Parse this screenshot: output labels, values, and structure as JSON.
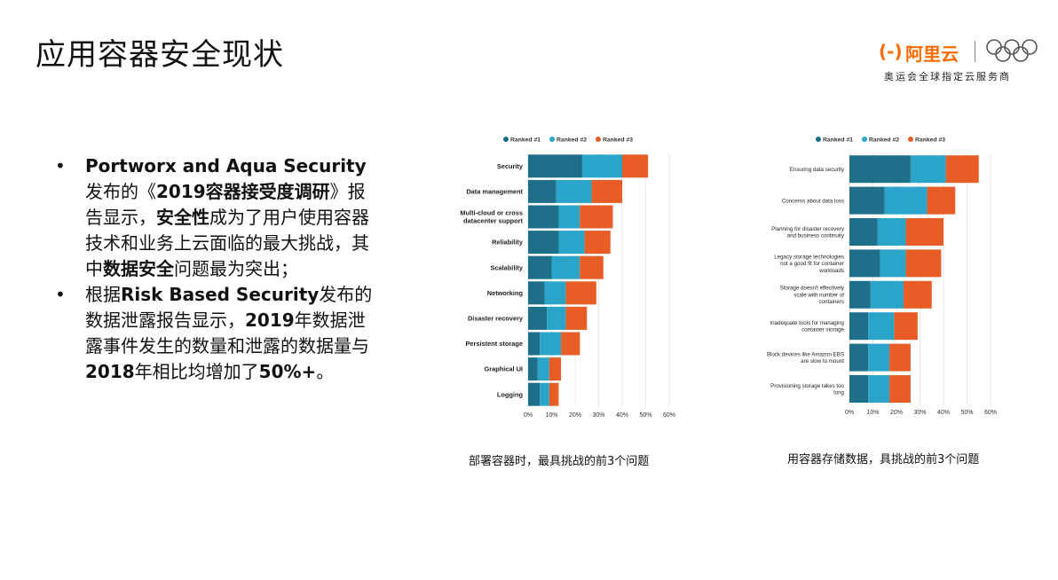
{
  "page": {
    "title": "应用容器安全现状"
  },
  "brand": {
    "mark": "(-)",
    "name": "阿里云",
    "tagline": "奥运会全球指定云服务商"
  },
  "bullets": [
    {
      "parts": [
        {
          "text": "Portworx and Aqua Security",
          "bold": true
        },
        {
          "text": "发布的《",
          "bold": false
        },
        {
          "text": "2019容器接受度调研",
          "bold": true
        },
        {
          "text": "》报告显示，",
          "bold": false
        },
        {
          "text": "安全性",
          "bold": true
        },
        {
          "text": "成为了用户使用容器技术和业务上云面临的最大挑战，其中",
          "bold": false
        },
        {
          "text": "数据安全",
          "bold": true
        },
        {
          "text": "问题最为突出；",
          "bold": false
        }
      ]
    },
    {
      "parts": [
        {
          "text": "根据",
          "bold": false
        },
        {
          "text": "Risk Based Security",
          "bold": true
        },
        {
          "text": "发布的数据泄露报告显示，",
          "bold": false
        },
        {
          "text": "2019",
          "bold": true
        },
        {
          "text": "年数据泄露事件发生的数量和泄露的数据量与",
          "bold": false
        },
        {
          "text": "2018",
          "bold": true
        },
        {
          "text": "年相比均增加了",
          "bold": false
        },
        {
          "text": "50%+",
          "bold": true
        },
        {
          "text": "。",
          "bold": false
        }
      ]
    }
  ],
  "colors": {
    "rank1": "#1f6f8b",
    "rank2": "#2aa5c9",
    "rank3": "#e85d26",
    "grid": "#d9d9d9"
  },
  "chart_data": [
    {
      "type": "bar",
      "orientation": "horizontal",
      "stacked": true,
      "caption": "部署容器时，最具挑战的前3个问题",
      "categories": [
        "Security",
        "Data management",
        "Multi-cloud or cross datacenter support",
        "Reliability",
        "Scalability",
        "Networking",
        "Disaster recovery",
        "Persistent storage",
        "Graphical UI",
        "Logging"
      ],
      "series": [
        {
          "name": "Ranked #1",
          "values": [
            23,
            12,
            13,
            13,
            10,
            7,
            8,
            5,
            4,
            5
          ]
        },
        {
          "name": "Ranked #2",
          "values": [
            17,
            15,
            9,
            11,
            12,
            9,
            8,
            9,
            5,
            4
          ]
        },
        {
          "name": "Ranked #3",
          "values": [
            11,
            13,
            14,
            11,
            10,
            13,
            9,
            8,
            5,
            4
          ]
        }
      ],
      "xticks": [
        "0%",
        "10%",
        "20%",
        "30%",
        "40%",
        "50%",
        "60%"
      ],
      "xlim": [
        0,
        60
      ],
      "legend": "top",
      "grid": true
    },
    {
      "type": "bar",
      "orientation": "horizontal",
      "stacked": true,
      "caption": "用容器存储数据，具挑战的前3个问题",
      "categories": [
        "Ensuring data security",
        "Concerns about data loss",
        "Planning for disaster recovery and business continuity",
        "Legacy storage technologies not a good fit for container workloads",
        "Storage doesn't effectively scale with number of containers",
        "Inadequate tools for managing container storage",
        "Block devices like Amazon EBS are slow to mount",
        "Provisioning storage takes too long"
      ],
      "series": [
        {
          "name": "Ranked #1",
          "values": [
            26,
            15,
            12,
            13,
            9,
            8,
            8,
            8
          ]
        },
        {
          "name": "Ranked #2",
          "values": [
            15,
            18,
            12,
            11,
            14,
            11,
            9,
            9
          ]
        },
        {
          "name": "Ranked #3",
          "values": [
            14,
            12,
            16,
            15,
            12,
            10,
            9,
            9
          ]
        }
      ],
      "xticks": [
        "0%",
        "10%",
        "20%",
        "30%",
        "40%",
        "50%",
        "60%"
      ],
      "xlim": [
        0,
        60
      ],
      "legend": "top",
      "grid": true
    }
  ]
}
